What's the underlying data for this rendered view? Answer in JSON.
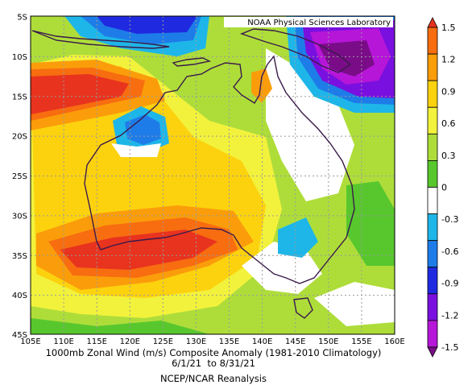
{
  "credit": "NOAA Physical Sciences Laboratory",
  "caption": {
    "line1": "1000mb Zonal Wind (m/s) Composite Anomaly (1981-2010 Climatology)",
    "line2": "6/1/21  to 8/31/21",
    "line3": "NCEP/NCAR Reanalysis"
  },
  "lat_ticks": [
    "5S",
    "10S",
    "15S",
    "20S",
    "25S",
    "30S",
    "35S",
    "40S",
    "45S"
  ],
  "lon_ticks": [
    "105E",
    "110E",
    "115E",
    "120E",
    "125E",
    "130E",
    "135E",
    "140E",
    "145E",
    "150E",
    "155E",
    "160E"
  ],
  "colorbar": {
    "labels": [
      "1.5",
      "1.2",
      "0.9",
      "0.6",
      "0.3",
      "0",
      "-0.3",
      "-0.6",
      "-0.9",
      "-1.2",
      "-1.5"
    ],
    "colors": [
      "#e8331f",
      "#f76d10",
      "#fb9d0a",
      "#fcd20f",
      "#f2f23c",
      "#aedd3a",
      "#58c72e",
      "#ffffff",
      "#1eb6e9",
      "#1e7ce8",
      "#1f2ae0",
      "#7a10df",
      "#b616d8",
      "#7a0c88"
    ]
  }
}
